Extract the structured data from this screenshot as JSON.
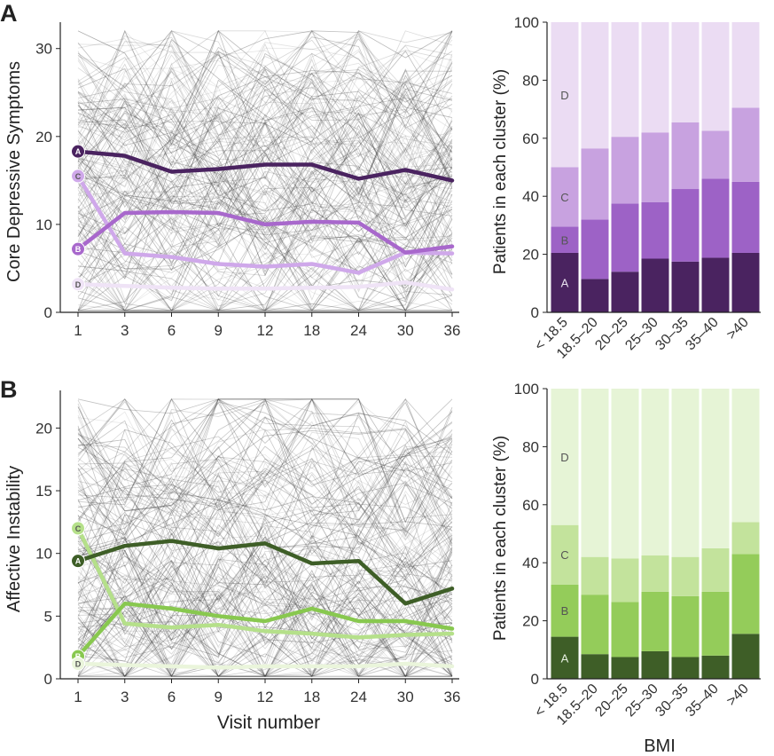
{
  "figure": {
    "panel_a_label": "A",
    "panel_b_label": "B"
  },
  "chart_data": [
    {
      "id": "A-line",
      "type": "line",
      "ylabel": "Core Depressive Symptoms",
      "xlabel": "",
      "categories": [
        "1",
        "3",
        "6",
        "9",
        "12",
        "18",
        "24",
        "30",
        "36"
      ],
      "yticks": [
        0,
        10,
        20,
        30
      ],
      "ylim": [
        0,
        33
      ],
      "background": "individual patient trajectories (many thin grey lines)",
      "series": [
        {
          "name": "A",
          "color": "#4a2360",
          "values": [
            18.3,
            17.8,
            16.0,
            16.3,
            16.8,
            16.8,
            15.2,
            16.2,
            15.0
          ]
        },
        {
          "name": "B",
          "color": "#a868cc",
          "values": [
            7.2,
            11.3,
            11.4,
            11.3,
            10.0,
            10.3,
            10.2,
            6.8,
            7.5
          ]
        },
        {
          "name": "C",
          "color": "#cfa8ea",
          "values": [
            15.5,
            6.7,
            6.3,
            5.5,
            5.2,
            5.5,
            4.5,
            6.8,
            6.7
          ]
        },
        {
          "name": "D",
          "color": "#efe3f6",
          "values": [
            3.2,
            3.0,
            2.8,
            2.7,
            2.7,
            2.8,
            2.9,
            3.4,
            2.6
          ]
        }
      ]
    },
    {
      "id": "A-bar",
      "type": "stacked-bar",
      "ylabel": "Patients in each cluster (%)",
      "xlabel": "",
      "categories": [
        "< 18.5",
        "18.5–20",
        "20–25",
        "25–30",
        "30–35",
        "35–40",
        ">40"
      ],
      "yticks": [
        0,
        20,
        40,
        60,
        80,
        100
      ],
      "ylim": [
        0,
        100
      ],
      "series": [
        {
          "name": "A",
          "color": "#4a2360",
          "values": [
            20.5,
            11.5,
            14.0,
            18.5,
            17.5,
            18.8,
            20.5
          ]
        },
        {
          "name": "B",
          "color": "#9d62c6",
          "values": [
            9.0,
            20.5,
            23.5,
            19.5,
            25.0,
            27.3,
            24.5
          ]
        },
        {
          "name": "C",
          "color": "#c8a2e0",
          "values": [
            20.5,
            24.5,
            23.0,
            24.0,
            23.0,
            16.5,
            25.5
          ]
        },
        {
          "name": "D",
          "color": "#ebdcf3",
          "values": [
            50.0,
            43.5,
            39.5,
            38.0,
            34.5,
            37.4,
            29.5
          ]
        }
      ]
    },
    {
      "id": "B-line",
      "type": "line",
      "ylabel": "Affective Instability",
      "xlabel": "Visit number",
      "categories": [
        "1",
        "3",
        "6",
        "9",
        "12",
        "18",
        "24",
        "30",
        "36"
      ],
      "yticks": [
        0,
        5,
        10,
        15,
        20
      ],
      "ylim": [
        0,
        23
      ],
      "background": "individual patient trajectories (many thin grey lines)",
      "series": [
        {
          "name": "A",
          "color": "#3e5e27",
          "values": [
            9.4,
            10.6,
            11.0,
            10.4,
            10.8,
            9.2,
            9.4,
            6.0,
            7.2
          ]
        },
        {
          "name": "B",
          "color": "#88c84f",
          "values": [
            1.8,
            6.0,
            5.6,
            5.0,
            4.6,
            5.6,
            4.6,
            4.6,
            4.0
          ]
        },
        {
          "name": "C",
          "color": "#b5e08a",
          "values": [
            12.0,
            4.4,
            4.1,
            4.3,
            3.8,
            3.6,
            3.3,
            3.5,
            3.6
          ]
        },
        {
          "name": "D",
          "color": "#eaf5db",
          "values": [
            1.2,
            1.1,
            1.0,
            0.9,
            1.0,
            1.0,
            1.0,
            1.2,
            1.0
          ]
        }
      ]
    },
    {
      "id": "B-bar",
      "type": "stacked-bar",
      "ylabel": "Patients in each cluster (%)",
      "xlabel": "BMI",
      "categories": [
        "< 18.5",
        "18.5–20",
        "20–25",
        "25–30",
        "30–35",
        "35–40",
        ">40"
      ],
      "yticks": [
        0,
        20,
        40,
        60,
        80,
        100
      ],
      "ylim": [
        0,
        100
      ],
      "series": [
        {
          "name": "A",
          "color": "#3e5e27",
          "values": [
            14.5,
            8.5,
            7.5,
            9.5,
            7.5,
            8.0,
            15.5
          ]
        },
        {
          "name": "B",
          "color": "#94cc5a",
          "values": [
            18.0,
            20.5,
            19.0,
            20.5,
            21.0,
            22.0,
            27.5
          ]
        },
        {
          "name": "C",
          "color": "#c3e39c",
          "values": [
            20.5,
            13.0,
            15.0,
            12.5,
            13.5,
            15.0,
            11.0
          ]
        },
        {
          "name": "D",
          "color": "#e6f4d6",
          "values": [
            47.0,
            58.0,
            58.5,
            57.5,
            58.0,
            55.0,
            46.0
          ]
        }
      ]
    }
  ]
}
